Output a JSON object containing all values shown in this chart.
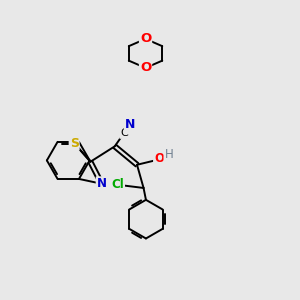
{
  "bg_color": "#e8e8e8",
  "atom_colors": {
    "C": "#000000",
    "N": "#0000cd",
    "O": "#ff0000",
    "S": "#ccaa00",
    "Cl": "#00aa00",
    "H": "#708090"
  },
  "bond_color": "#000000",
  "bond_width": 1.4,
  "font_size_atom": 8.5
}
